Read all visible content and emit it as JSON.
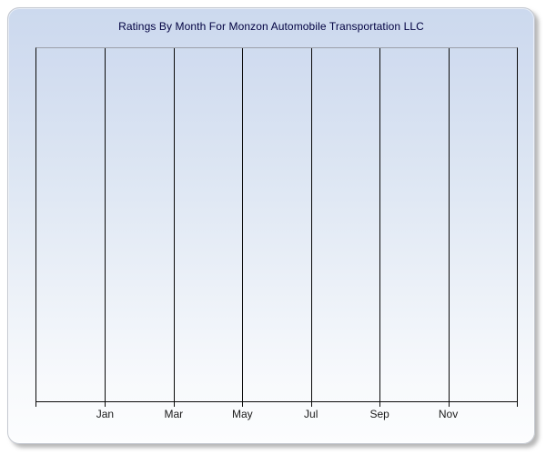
{
  "chart": {
    "title": "Ratings By Month For Monzon Automobile Transportation LLC"
  },
  "chart_data": {
    "type": "line",
    "title": "Ratings By Month For Monzon Automobile Transportation LLC",
    "categories": [
      "Jan",
      "Mar",
      "May",
      "Jul",
      "Sep",
      "Nov"
    ],
    "series": [],
    "y_tick_labels": [],
    "xlabel": "",
    "ylabel": "",
    "legend": "none",
    "grid": "vertical-only",
    "plot_is_empty": true
  },
  "colors": {
    "panel_gradient_top": "#ccd9ee",
    "panel_gradient_bottom": "#fcfdfe",
    "panel_border": "#c3c7cf",
    "title_text": "#000040",
    "gridline": "#0a0a0a",
    "plot_top_border": "#9b9fa9",
    "axis_label_text": "#1a1a1a",
    "page_background": "#ffffff"
  }
}
